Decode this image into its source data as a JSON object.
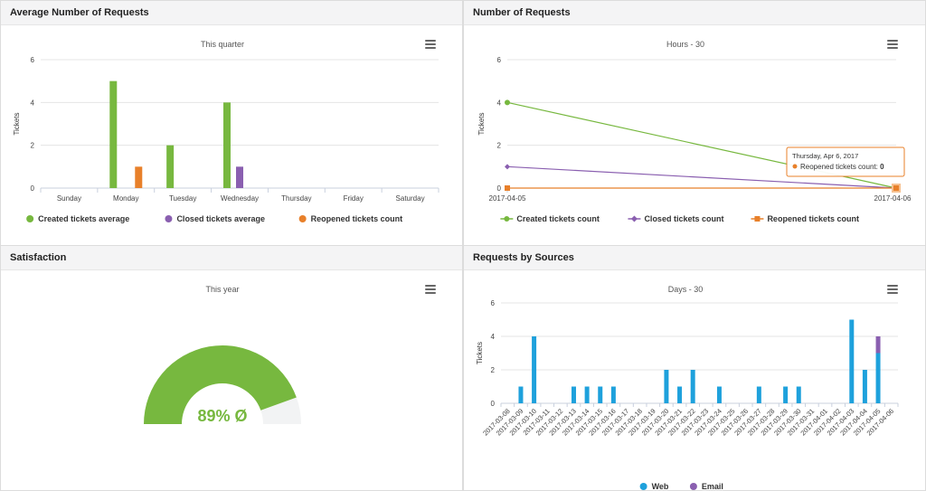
{
  "panels": {
    "avg": {
      "title": "Average Number of Requests"
    },
    "num": {
      "title": "Number of Requests"
    },
    "sat": {
      "title": "Satisfaction"
    },
    "src": {
      "title": "Requests by Sources"
    }
  },
  "colors": {
    "green": "#77b83f",
    "purple": "#8a5fb0",
    "orange": "#e8802a",
    "blue": "#1ea1dc",
    "gray": "#f2f3f4"
  },
  "icons": {
    "menu": "hamburger-menu-icon"
  },
  "chart_data": [
    {
      "id": "avg",
      "type": "bar",
      "title": "This quarter",
      "ylabel": "Tickets",
      "ylim": [
        0,
        6
      ],
      "yticks": [
        0,
        2,
        4,
        6
      ],
      "categories": [
        "Sunday",
        "Monday",
        "Tuesday",
        "Wednesday",
        "Thursday",
        "Friday",
        "Saturday"
      ],
      "series": [
        {
          "name": "Created tickets average",
          "color": "#77b83f",
          "values": [
            0,
            5,
            2,
            4,
            0,
            0,
            0
          ]
        },
        {
          "name": "Closed tickets average",
          "color": "#8a5fb0",
          "values": [
            0,
            0,
            0,
            1,
            0,
            0,
            0
          ]
        },
        {
          "name": "Reopened tickets count",
          "color": "#e8802a",
          "values": [
            0,
            1,
            0,
            0,
            0,
            0,
            0
          ]
        }
      ],
      "grid": true,
      "legend": "bottom"
    },
    {
      "id": "num",
      "type": "line",
      "title": "Hours - 30",
      "ylabel": "Tickets",
      "ylim": [
        0,
        6
      ],
      "yticks": [
        0,
        2,
        4,
        6
      ],
      "x": [
        "2017-04-05",
        "2017-04-06"
      ],
      "series": [
        {
          "name": "Created tickets count",
          "color": "#77b83f",
          "marker": "circle",
          "values": [
            4,
            0
          ]
        },
        {
          "name": "Closed tickets count",
          "color": "#8a5fb0",
          "marker": "diamond",
          "values": [
            1,
            0
          ]
        },
        {
          "name": "Reopened tickets count",
          "color": "#e8802a",
          "marker": "square",
          "values": [
            0,
            0
          ]
        }
      ],
      "tooltip": {
        "date": "Thursday, Apr 6, 2017",
        "series": "Reopened tickets count",
        "value": "0"
      },
      "grid": true,
      "legend": "bottom"
    },
    {
      "id": "sat",
      "type": "gauge",
      "title": "This year",
      "value": 89,
      "label": "89% Ø",
      "color": "#77b83f"
    },
    {
      "id": "src",
      "type": "bar",
      "title": "Days - 30",
      "ylabel": "Tickets",
      "ylim": [
        0,
        6
      ],
      "yticks": [
        0,
        2,
        4,
        6
      ],
      "categories": [
        "2017-03-08",
        "2017-03-09",
        "2017-03-10",
        "2017-03-11",
        "2017-03-12",
        "2017-03-13",
        "2017-03-14",
        "2017-03-15",
        "2017-03-16",
        "2017-03-17",
        "2017-03-18",
        "2017-03-19",
        "2017-03-20",
        "2017-03-21",
        "2017-03-22",
        "2017-03-23",
        "2017-03-24",
        "2017-03-25",
        "2017-03-26",
        "2017-03-27",
        "2017-03-28",
        "2017-03-29",
        "2017-03-30",
        "2017-03-31",
        "2017-04-01",
        "2017-04-02",
        "2017-04-03",
        "2017-04-04",
        "2017-04-05",
        "2017-04-06"
      ],
      "stacked": true,
      "series": [
        {
          "name": "Web",
          "color": "#1ea1dc",
          "values": [
            0,
            1,
            4,
            0,
            0,
            1,
            1,
            1,
            1,
            0,
            0,
            0,
            2,
            1,
            2,
            0,
            1,
            0,
            0,
            1,
            0,
            1,
            1,
            0,
            0,
            0,
            5,
            2,
            3,
            0
          ]
        },
        {
          "name": "Email",
          "color": "#8a5fb0",
          "values": [
            0,
            0,
            0,
            0,
            0,
            0,
            0,
            0,
            0,
            0,
            0,
            0,
            0,
            0,
            0,
            0,
            0,
            0,
            0,
            0,
            0,
            0,
            0,
            0,
            0,
            0,
            0,
            0,
            1,
            0
          ]
        }
      ],
      "grid": true,
      "legend": "bottom"
    }
  ]
}
